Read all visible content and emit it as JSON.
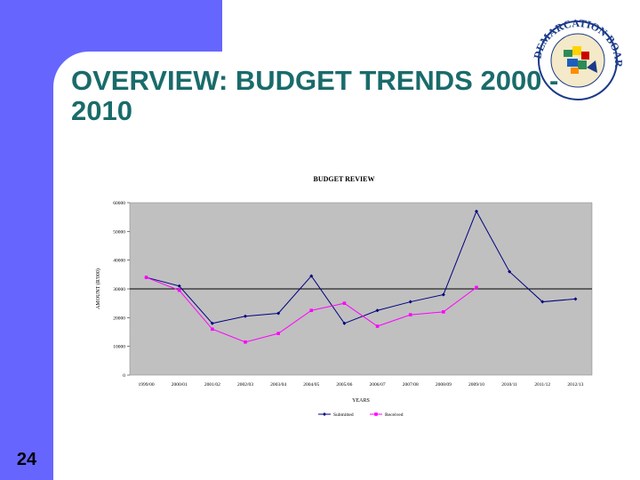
{
  "slide": {
    "title": "OVERVIEW: BUDGET TRENDS 2000 - 2010",
    "number": "24"
  },
  "logo": {
    "text": "DEMARCATION BOARD",
    "icon": "municipal-demarcation-board-seal"
  },
  "colors": {
    "sidebar": "#6666ff",
    "title": "#1a6b6b",
    "plot_background": "#c0c0c0",
    "submitted": "#000080",
    "received": "#ff00ff"
  },
  "chart_data": {
    "type": "line",
    "title": "BUDGET REVIEW",
    "xlabel": "YEARS",
    "ylabel": "AMOUNT (R'000)",
    "categories": [
      "1999/00",
      "2000/01",
      "2001/02",
      "2002/03",
      "2003/04",
      "2004/05",
      "2005/06",
      "2006/07",
      "2007/08",
      "2008/09",
      "2009/10",
      "2010/11",
      "2011/12",
      "2012/13"
    ],
    "ylim": [
      0,
      60000
    ],
    "yticks": [
      "0",
      "10000",
      "20000",
      "30000",
      "40000",
      "50000",
      "60000"
    ],
    "reference_line": 30000,
    "legend_position": "bottom",
    "series": [
      {
        "name": "Submitted",
        "values": [
          34000,
          31000,
          18000,
          20500,
          21500,
          34500,
          18000,
          22500,
          25500,
          28000,
          57000,
          36000,
          25500,
          26500
        ]
      },
      {
        "name": "Received",
        "values": [
          34000,
          29500,
          16000,
          11500,
          14500,
          22500,
          25000,
          17000,
          21000,
          22000,
          30500,
          null,
          null,
          null
        ]
      }
    ]
  }
}
